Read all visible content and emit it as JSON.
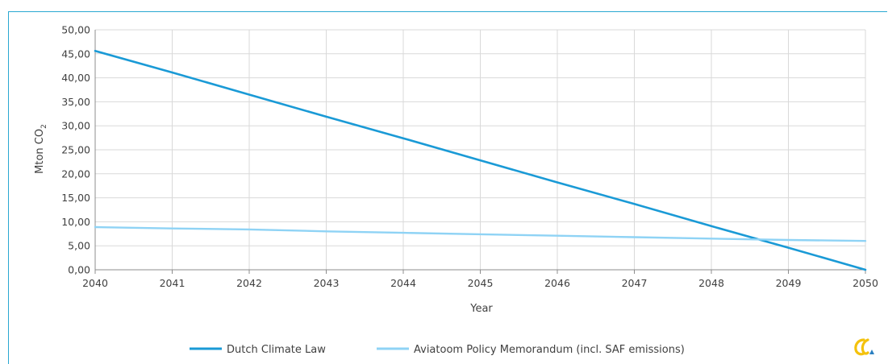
{
  "chart_data": {
    "type": "line",
    "x": [
      2040,
      2041,
      2042,
      2043,
      2044,
      2045,
      2046,
      2047,
      2048,
      2049,
      2050
    ],
    "x_tick_labels": [
      "2040",
      "2041",
      "2042",
      "2043",
      "2044",
      "2045",
      "2046",
      "2047",
      "2048",
      "2049",
      "2050"
    ],
    "xlabel": "Year",
    "ylabel_main": "Mton CO",
    "ylabel_sub": "2",
    "xlim": [
      2040,
      2050
    ],
    "ylim": [
      0,
      50
    ],
    "y_ticks": [
      0,
      5,
      10,
      15,
      20,
      25,
      30,
      35,
      40,
      45,
      50
    ],
    "y_tick_labels": [
      "0,00",
      "5,00",
      "10,00",
      "15,00",
      "20,00",
      "25,00",
      "30,00",
      "35,00",
      "40,00",
      "45,00",
      "50,00"
    ],
    "grid": true,
    "legend_position": "bottom",
    "series": [
      {
        "name": "Dutch Climate Law",
        "color": "#1a9ad6",
        "values": [
          45.6,
          41.1,
          36.5,
          31.9,
          27.4,
          22.8,
          18.2,
          13.7,
          9.1,
          4.6,
          0.0
        ]
      },
      {
        "name": "Aviatoom Policy Memorandum (incl. SAF emissions)",
        "color": "#8fd3f5",
        "values": [
          8.9,
          8.6,
          8.4,
          8.0,
          7.7,
          7.4,
          7.1,
          6.8,
          6.5,
          6.2,
          6.0
        ]
      }
    ]
  },
  "logo": {
    "name": "brand-logo-icon",
    "colors": [
      "#f4c20d",
      "#2a7fc0"
    ]
  }
}
